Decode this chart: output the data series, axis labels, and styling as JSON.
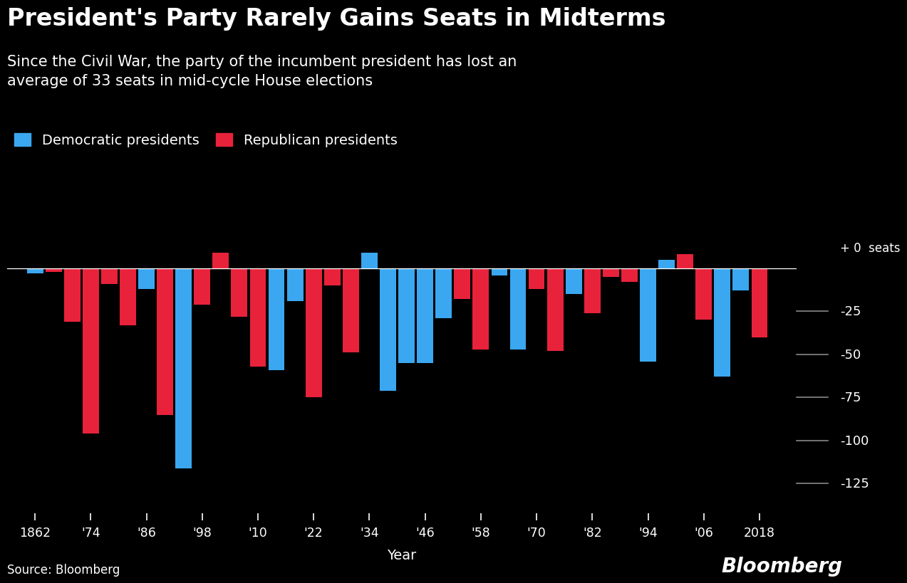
{
  "title": "President's Party Rarely Gains Seats in Midterms",
  "subtitle": "Since the Civil War, the party of the incumbent president has lost an\naverage of 33 seats in mid-cycle House elections",
  "xlabel": "Year",
  "source": "Source: Bloomberg",
  "watermark": "Bloomberg",
  "legend_dem": "Democratic presidents",
  "legend_rep": "Republican presidents",
  "zero_label": "+ 0  seats",
  "dem_color": "#3aa7f0",
  "rep_color": "#e8223a",
  "background_color": "#000000",
  "text_color": "#FFFFFF",
  "tick_line_color": "#888888",
  "ylim": [
    -142,
    18
  ],
  "yticks": [
    0,
    -25,
    -50,
    -75,
    -100,
    -125
  ],
  "elections": [
    {
      "year": 1862,
      "seats": -3,
      "party": "D"
    },
    {
      "year": 1866,
      "seats": -2,
      "party": "R"
    },
    {
      "year": 1870,
      "seats": -31,
      "party": "R"
    },
    {
      "year": 1874,
      "seats": -96,
      "party": "R"
    },
    {
      "year": 1878,
      "seats": -9,
      "party": "R"
    },
    {
      "year": 1882,
      "seats": -33,
      "party": "R"
    },
    {
      "year": 1886,
      "seats": -12,
      "party": "D"
    },
    {
      "year": 1890,
      "seats": -85,
      "party": "R"
    },
    {
      "year": 1894,
      "seats": -116,
      "party": "D"
    },
    {
      "year": 1898,
      "seats": -21,
      "party": "R"
    },
    {
      "year": 1902,
      "seats": 9,
      "party": "R"
    },
    {
      "year": 1906,
      "seats": -28,
      "party": "R"
    },
    {
      "year": 1910,
      "seats": -57,
      "party": "R"
    },
    {
      "year": 1914,
      "seats": -59,
      "party": "D"
    },
    {
      "year": 1918,
      "seats": -19,
      "party": "D"
    },
    {
      "year": 1922,
      "seats": -75,
      "party": "R"
    },
    {
      "year": 1926,
      "seats": -10,
      "party": "R"
    },
    {
      "year": 1930,
      "seats": -49,
      "party": "R"
    },
    {
      "year": 1934,
      "seats": 9,
      "party": "D"
    },
    {
      "year": 1938,
      "seats": -71,
      "party": "D"
    },
    {
      "year": 1942,
      "seats": -55,
      "party": "D"
    },
    {
      "year": 1946,
      "seats": -55,
      "party": "D"
    },
    {
      "year": 1950,
      "seats": -29,
      "party": "D"
    },
    {
      "year": 1954,
      "seats": -18,
      "party": "R"
    },
    {
      "year": 1958,
      "seats": -47,
      "party": "R"
    },
    {
      "year": 1962,
      "seats": -4,
      "party": "D"
    },
    {
      "year": 1966,
      "seats": -47,
      "party": "D"
    },
    {
      "year": 1970,
      "seats": -12,
      "party": "R"
    },
    {
      "year": 1974,
      "seats": -48,
      "party": "R"
    },
    {
      "year": 1978,
      "seats": -15,
      "party": "D"
    },
    {
      "year": 1982,
      "seats": -26,
      "party": "R"
    },
    {
      "year": 1986,
      "seats": -5,
      "party": "R"
    },
    {
      "year": 1990,
      "seats": -8,
      "party": "R"
    },
    {
      "year": 1994,
      "seats": -54,
      "party": "D"
    },
    {
      "year": 1998,
      "seats": 5,
      "party": "D"
    },
    {
      "year": 2002,
      "seats": 8,
      "party": "R"
    },
    {
      "year": 2006,
      "seats": -30,
      "party": "R"
    },
    {
      "year": 2010,
      "seats": -63,
      "party": "D"
    },
    {
      "year": 2014,
      "seats": -13,
      "party": "D"
    },
    {
      "year": 2018,
      "seats": -40,
      "party": "R"
    }
  ],
  "xtick_years": [
    1862,
    1874,
    1886,
    1898,
    1910,
    1922,
    1934,
    1946,
    1958,
    1970,
    1982,
    1994,
    2006,
    2018
  ],
  "xtick_labels": [
    "1862",
    "'74",
    "'86",
    "'98",
    "'10",
    "'22",
    "'34",
    "'46",
    "'58",
    "'70",
    "'82",
    "'94",
    "'06",
    "2018"
  ]
}
